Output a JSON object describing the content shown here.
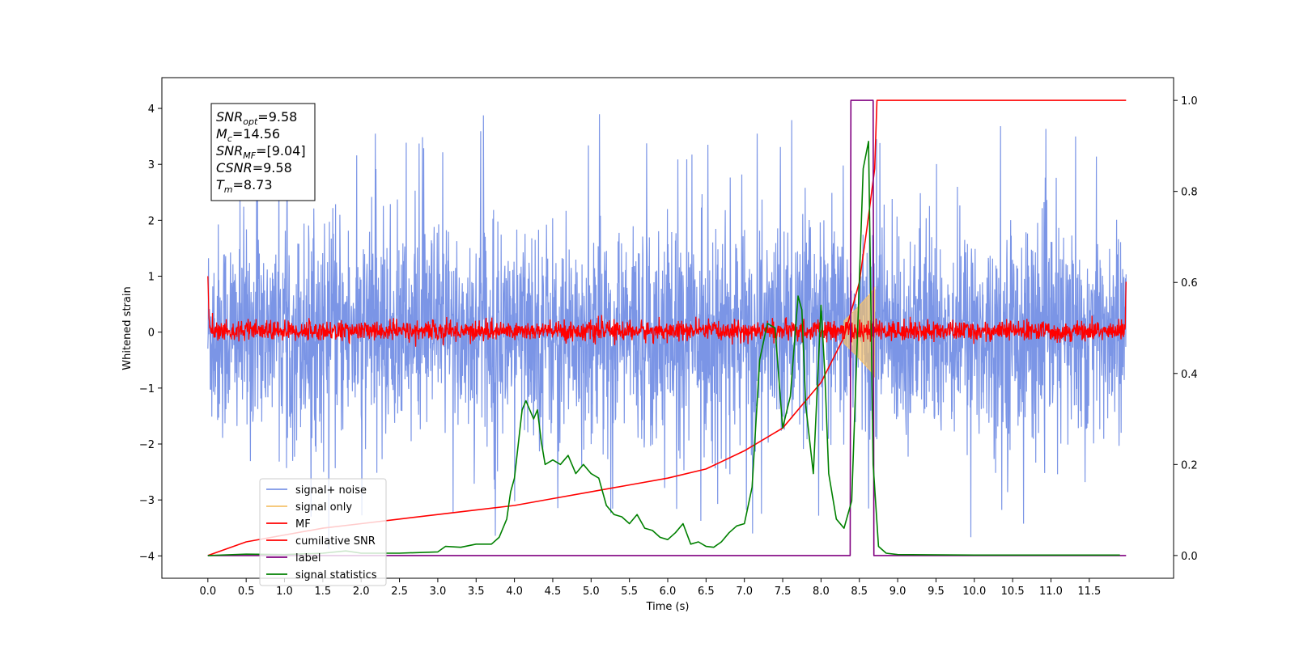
{
  "chart_data": {
    "type": "line",
    "xlabel": "Time (s)",
    "ylabel_left": "Whitened strain",
    "ylabel_right": "",
    "xlim": [
      -0.6,
      12.6
    ],
    "ylim_left": [
      -4.4,
      4.55
    ],
    "ylim_right": [
      -0.05,
      1.05
    ],
    "x_ticks": [
      "0.0",
      "0.5",
      "1.0",
      "1.5",
      "2.0",
      "2.5",
      "3.0",
      "3.5",
      "4.0",
      "4.5",
      "5.0",
      "5.5",
      "6.0",
      "6.5",
      "7.0",
      "7.5",
      "8.0",
      "8.5",
      "9.0",
      "9.5",
      "10.0",
      "10.5",
      "11.0",
      "11.5"
    ],
    "y_ticks_left": [
      "4",
      "3",
      "2",
      "1",
      "0",
      "−1",
      "−2",
      "−3",
      "−4"
    ],
    "y_ticks_right": [
      "1.0",
      "0.8",
      "0.6",
      "0.4",
      "0.2",
      "0.0"
    ],
    "grid": false,
    "legend_position": "lower-left",
    "stats": [
      {
        "symbol": "SNR",
        "sub": "opt",
        "value": "=9.58"
      },
      {
        "symbol": "M",
        "sub": "c",
        "value": "=14.56"
      },
      {
        "symbol": "SNR",
        "sub": "MF",
        "value": "=[9.04]"
      },
      {
        "symbol": "CSNR",
        "sub": "",
        "value": "=9.58"
      },
      {
        "symbol": "T",
        "sub": "m",
        "value": "=8.73"
      }
    ],
    "series": [
      {
        "name": "signal+ noise",
        "color": "#7b95e6",
        "axis": "left",
        "description_values": {
          "x_range": [
            0.0,
            11.98
          ],
          "envelope": [
            -2.8,
            3.0
          ],
          "max_spike": 4.2,
          "min_spike": -4.0
        }
      },
      {
        "name": "signal only",
        "color": "#f5c26b",
        "axis": "left",
        "x": [
          8.3,
          8.45,
          8.55,
          8.65,
          8.7
        ],
        "amplitude": [
          0.2,
          0.4,
          0.55,
          0.7,
          0.8
        ]
      },
      {
        "name": "MF",
        "color": "#ff0000",
        "axis": "left",
        "envelope": [
          -0.2,
          0.3
        ]
      },
      {
        "name": "cumilative SNR",
        "color": "#ff0000",
        "axis": "right",
        "x": [
          0.0,
          0.5,
          1.0,
          1.5,
          2.0,
          2.5,
          3.0,
          3.5,
          4.0,
          4.5,
          5.0,
          5.5,
          6.0,
          6.5,
          7.0,
          7.5,
          8.0,
          8.3,
          8.5,
          8.6,
          8.7,
          8.73,
          11.98
        ],
        "values": [
          0.0,
          0.03,
          0.045,
          0.06,
          0.07,
          0.08,
          0.09,
          0.1,
          0.11,
          0.125,
          0.14,
          0.155,
          0.17,
          0.19,
          0.23,
          0.28,
          0.38,
          0.48,
          0.6,
          0.72,
          0.85,
          1.0,
          1.0
        ]
      },
      {
        "name": "label",
        "color": "#800080",
        "axis": "right",
        "x": [
          0.0,
          8.38,
          8.39,
          8.68,
          8.69,
          11.98
        ],
        "values": [
          0.0,
          0.0,
          1.0,
          1.0,
          0.0,
          0.0
        ]
      },
      {
        "name": "signal statistics",
        "color": "#008000",
        "axis": "right",
        "x": [
          0.0,
          0.5,
          1.0,
          1.5,
          1.8,
          2.0,
          2.5,
          3.0,
          3.1,
          3.3,
          3.5,
          3.7,
          3.8,
          3.9,
          3.95,
          4.0,
          4.1,
          4.15,
          4.25,
          4.3,
          4.35,
          4.4,
          4.5,
          4.6,
          4.7,
          4.8,
          4.9,
          5.0,
          5.1,
          5.2,
          5.3,
          5.4,
          5.5,
          5.6,
          5.7,
          5.8,
          5.9,
          6.0,
          6.1,
          6.2,
          6.3,
          6.4,
          6.5,
          6.6,
          6.7,
          6.8,
          6.9,
          7.0,
          7.1,
          7.2,
          7.3,
          7.4,
          7.5,
          7.6,
          7.7,
          7.75,
          7.8,
          7.9,
          8.0,
          8.05,
          8.1,
          8.2,
          8.3,
          8.4,
          8.45,
          8.55,
          8.62,
          8.68,
          8.75,
          8.85,
          9.0,
          10.0,
          11.0,
          11.9
        ],
        "values": [
          0.0,
          0.003,
          0.002,
          0.005,
          0.01,
          0.005,
          0.005,
          0.008,
          0.02,
          0.018,
          0.025,
          0.025,
          0.04,
          0.08,
          0.14,
          0.17,
          0.32,
          0.34,
          0.3,
          0.32,
          0.25,
          0.2,
          0.21,
          0.2,
          0.22,
          0.18,
          0.2,
          0.18,
          0.17,
          0.11,
          0.09,
          0.085,
          0.07,
          0.09,
          0.06,
          0.055,
          0.04,
          0.035,
          0.05,
          0.07,
          0.025,
          0.03,
          0.02,
          0.018,
          0.03,
          0.05,
          0.065,
          0.07,
          0.15,
          0.43,
          0.51,
          0.5,
          0.28,
          0.35,
          0.57,
          0.54,
          0.33,
          0.18,
          0.55,
          0.4,
          0.18,
          0.08,
          0.06,
          0.12,
          0.36,
          0.85,
          0.91,
          0.2,
          0.02,
          0.005,
          0.002,
          0.001,
          0.001,
          0.001
        ]
      }
    ]
  }
}
